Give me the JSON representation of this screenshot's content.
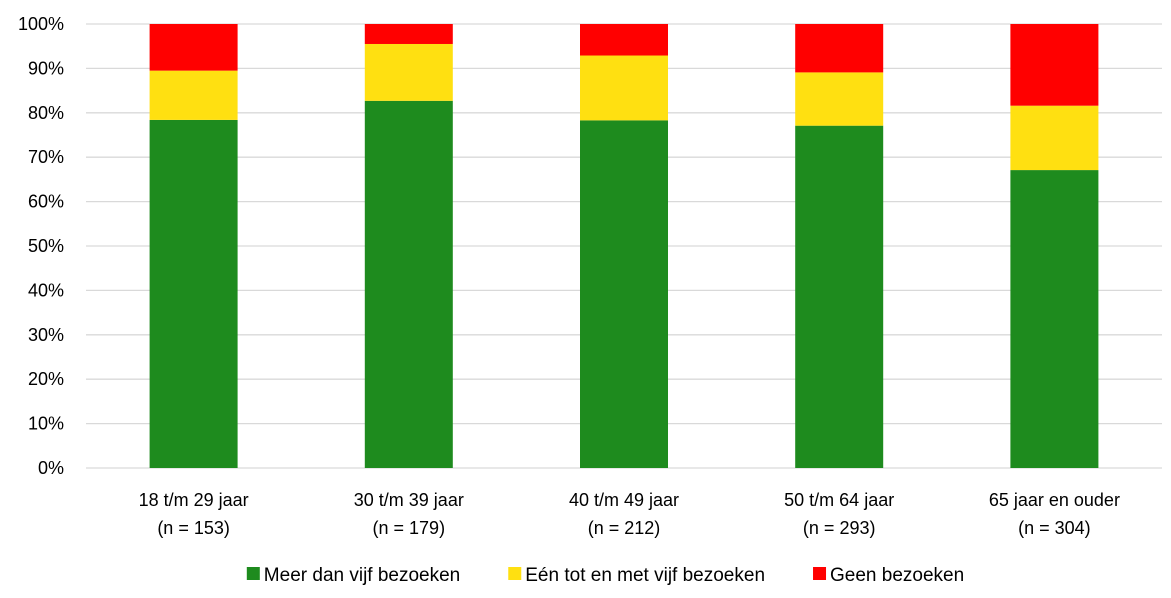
{
  "chart_data": {
    "type": "bar",
    "stacked": true,
    "categories": [
      [
        "18 t/m 29 jaar",
        "(n = 153)"
      ],
      [
        "30 t/m 39 jaar",
        "(n = 179)"
      ],
      [
        "40 t/m 49 jaar",
        "(n = 212)"
      ],
      [
        "50 t/m 64 jaar",
        "(n = 293)"
      ],
      [
        "65 jaar en ouder",
        "(n = 304)"
      ]
    ],
    "series": [
      {
        "name": "Meer dan vijf bezoeken",
        "color": "#1e8b1e",
        "values": [
          78.4,
          82.7,
          78.3,
          77.1,
          67.1
        ]
      },
      {
        "name": "Eén tot en met vijf bezoeken",
        "color": "#ffe011",
        "values": [
          11.1,
          12.8,
          14.6,
          12.0,
          14.5
        ]
      },
      {
        "name": "Geen bezoeken",
        "color": "#ff0000",
        "values": [
          10.5,
          4.5,
          7.1,
          10.9,
          18.4
        ]
      }
    ],
    "ylim": [
      0,
      100
    ],
    "yticks": [
      "0%",
      "10%",
      "20%",
      "30%",
      "40%",
      "50%",
      "60%",
      "70%",
      "80%",
      "90%",
      "100%"
    ],
    "grid": true,
    "legend_position": "bottom"
  }
}
